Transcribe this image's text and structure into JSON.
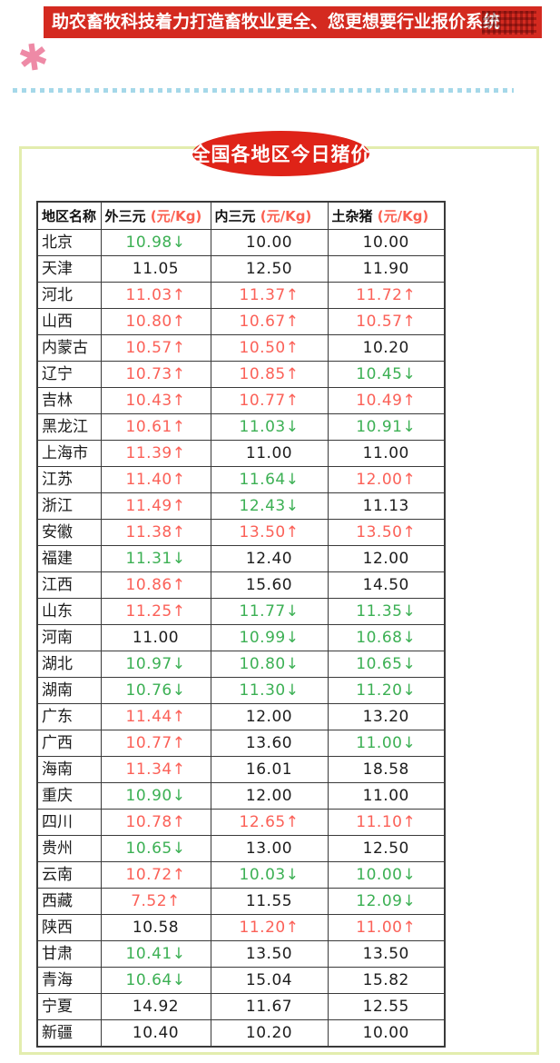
{
  "banner": {
    "text": "助农畜牧科技着力打造畜牧业更全、您更想要行业报价系统"
  },
  "decor": {
    "star_glyph": "✱",
    "arrow_up": "↑",
    "arrow_down": "↓"
  },
  "title_badge": {
    "text": "全国各地区今日猪价"
  },
  "colors": {
    "banner_red": "#d42a20",
    "badge_red": "#df2318",
    "box_border": "#e3edae",
    "dots_blue": "#a5d8e9",
    "star_pink": "#ee8aa6",
    "value_up": "#fb6158",
    "value_down": "#3cb054",
    "value_flat": "#1c1c1c",
    "unit_red": "#fb5f50"
  },
  "table": {
    "headers": [
      {
        "label": "地区名称",
        "unit": ""
      },
      {
        "label": "外三元",
        "unit": "(元/Kg)"
      },
      {
        "label": "内三元",
        "unit": "(元/Kg)"
      },
      {
        "label": "土杂猪",
        "unit": "(元/Kg)"
      }
    ],
    "rows": [
      {
        "region": "北京",
        "cells": [
          {
            "v": "10.98",
            "d": "down"
          },
          {
            "v": "10.00",
            "d": "flat"
          },
          {
            "v": "10.00",
            "d": "flat"
          }
        ]
      },
      {
        "region": "天津",
        "cells": [
          {
            "v": "11.05",
            "d": "flat"
          },
          {
            "v": "12.50",
            "d": "flat"
          },
          {
            "v": "11.90",
            "d": "flat"
          }
        ]
      },
      {
        "region": "河北",
        "cells": [
          {
            "v": "11.03",
            "d": "up"
          },
          {
            "v": "11.37",
            "d": "up"
          },
          {
            "v": "11.72",
            "d": "up"
          }
        ]
      },
      {
        "region": "山西",
        "cells": [
          {
            "v": "10.80",
            "d": "up"
          },
          {
            "v": "10.67",
            "d": "up"
          },
          {
            "v": "10.57",
            "d": "up"
          }
        ]
      },
      {
        "region": "内蒙古",
        "cells": [
          {
            "v": "10.57",
            "d": "up"
          },
          {
            "v": "10.50",
            "d": "up"
          },
          {
            "v": "10.20",
            "d": "flat"
          }
        ]
      },
      {
        "region": "辽宁",
        "cells": [
          {
            "v": "10.73",
            "d": "up"
          },
          {
            "v": "10.85",
            "d": "up"
          },
          {
            "v": "10.45",
            "d": "down"
          }
        ]
      },
      {
        "region": "吉林",
        "cells": [
          {
            "v": "10.43",
            "d": "up"
          },
          {
            "v": "10.77",
            "d": "up"
          },
          {
            "v": "10.49",
            "d": "up"
          }
        ]
      },
      {
        "region": "黑龙江",
        "cells": [
          {
            "v": "10.61",
            "d": "up"
          },
          {
            "v": "11.03",
            "d": "down"
          },
          {
            "v": "10.91",
            "d": "down"
          }
        ]
      },
      {
        "region": "上海市",
        "cells": [
          {
            "v": "11.39",
            "d": "up"
          },
          {
            "v": "11.00",
            "d": "flat"
          },
          {
            "v": "11.00",
            "d": "flat"
          }
        ]
      },
      {
        "region": "江苏",
        "cells": [
          {
            "v": "11.40",
            "d": "up"
          },
          {
            "v": "11.64",
            "d": "down"
          },
          {
            "v": "12.00",
            "d": "up"
          }
        ]
      },
      {
        "region": "浙江",
        "cells": [
          {
            "v": "11.49",
            "d": "up"
          },
          {
            "v": "12.43",
            "d": "down"
          },
          {
            "v": "11.13",
            "d": "flat"
          }
        ]
      },
      {
        "region": "安徽",
        "cells": [
          {
            "v": "11.38",
            "d": "up"
          },
          {
            "v": "13.50",
            "d": "up"
          },
          {
            "v": "13.50",
            "d": "up"
          }
        ]
      },
      {
        "region": "福建",
        "cells": [
          {
            "v": "11.31",
            "d": "down"
          },
          {
            "v": "12.40",
            "d": "flat"
          },
          {
            "v": "12.00",
            "d": "flat"
          }
        ]
      },
      {
        "region": "江西",
        "cells": [
          {
            "v": "10.86",
            "d": "up"
          },
          {
            "v": "15.60",
            "d": "flat"
          },
          {
            "v": "14.50",
            "d": "flat"
          }
        ]
      },
      {
        "region": "山东",
        "cells": [
          {
            "v": "11.25",
            "d": "up"
          },
          {
            "v": "11.77",
            "d": "down"
          },
          {
            "v": "11.35",
            "d": "down"
          }
        ]
      },
      {
        "region": "河南",
        "cells": [
          {
            "v": "11.00",
            "d": "flat"
          },
          {
            "v": "10.99",
            "d": "down"
          },
          {
            "v": "10.68",
            "d": "down"
          }
        ]
      },
      {
        "region": "湖北",
        "cells": [
          {
            "v": "10.97",
            "d": "down"
          },
          {
            "v": "10.80",
            "d": "down"
          },
          {
            "v": "10.65",
            "d": "down"
          }
        ]
      },
      {
        "region": "湖南",
        "cells": [
          {
            "v": "10.76",
            "d": "down"
          },
          {
            "v": "11.30",
            "d": "down"
          },
          {
            "v": "11.20",
            "d": "down"
          }
        ]
      },
      {
        "region": "广东",
        "cells": [
          {
            "v": "11.44",
            "d": "up"
          },
          {
            "v": "12.00",
            "d": "flat"
          },
          {
            "v": "13.20",
            "d": "flat"
          }
        ]
      },
      {
        "region": "广西",
        "cells": [
          {
            "v": "10.77",
            "d": "up"
          },
          {
            "v": "13.60",
            "d": "flat"
          },
          {
            "v": "11.00",
            "d": "down"
          }
        ]
      },
      {
        "region": "海南",
        "cells": [
          {
            "v": "11.34",
            "d": "up"
          },
          {
            "v": "16.01",
            "d": "flat"
          },
          {
            "v": "18.58",
            "d": "flat"
          }
        ]
      },
      {
        "region": "重庆",
        "cells": [
          {
            "v": "10.90",
            "d": "down"
          },
          {
            "v": "12.00",
            "d": "flat"
          },
          {
            "v": "11.00",
            "d": "flat"
          }
        ]
      },
      {
        "region": "四川",
        "cells": [
          {
            "v": "10.78",
            "d": "up"
          },
          {
            "v": "12.65",
            "d": "up"
          },
          {
            "v": "11.10",
            "d": "up"
          }
        ]
      },
      {
        "region": "贵州",
        "cells": [
          {
            "v": "10.65",
            "d": "down"
          },
          {
            "v": "13.00",
            "d": "flat"
          },
          {
            "v": "12.50",
            "d": "flat"
          }
        ]
      },
      {
        "region": "云南",
        "cells": [
          {
            "v": "10.72",
            "d": "up"
          },
          {
            "v": "10.03",
            "d": "down"
          },
          {
            "v": "10.00",
            "d": "down"
          }
        ]
      },
      {
        "region": "西藏",
        "cells": [
          {
            "v": "7.52",
            "d": "up"
          },
          {
            "v": "11.55",
            "d": "flat"
          },
          {
            "v": "12.09",
            "d": "down"
          }
        ]
      },
      {
        "region": "陕西",
        "cells": [
          {
            "v": "10.58",
            "d": "flat"
          },
          {
            "v": "11.20",
            "d": "up"
          },
          {
            "v": "11.00",
            "d": "up"
          }
        ]
      },
      {
        "region": "甘肃",
        "cells": [
          {
            "v": "10.41",
            "d": "down"
          },
          {
            "v": "13.50",
            "d": "flat"
          },
          {
            "v": "13.50",
            "d": "flat"
          }
        ]
      },
      {
        "region": "青海",
        "cells": [
          {
            "v": "10.64",
            "d": "down"
          },
          {
            "v": "15.04",
            "d": "flat"
          },
          {
            "v": "15.82",
            "d": "flat"
          }
        ]
      },
      {
        "region": "宁夏",
        "cells": [
          {
            "v": "14.92",
            "d": "flat"
          },
          {
            "v": "11.67",
            "d": "flat"
          },
          {
            "v": "12.55",
            "d": "flat"
          }
        ]
      },
      {
        "region": "新疆",
        "cells": [
          {
            "v": "10.40",
            "d": "flat"
          },
          {
            "v": "10.20",
            "d": "flat"
          },
          {
            "v": "10.00",
            "d": "flat"
          }
        ]
      }
    ]
  }
}
